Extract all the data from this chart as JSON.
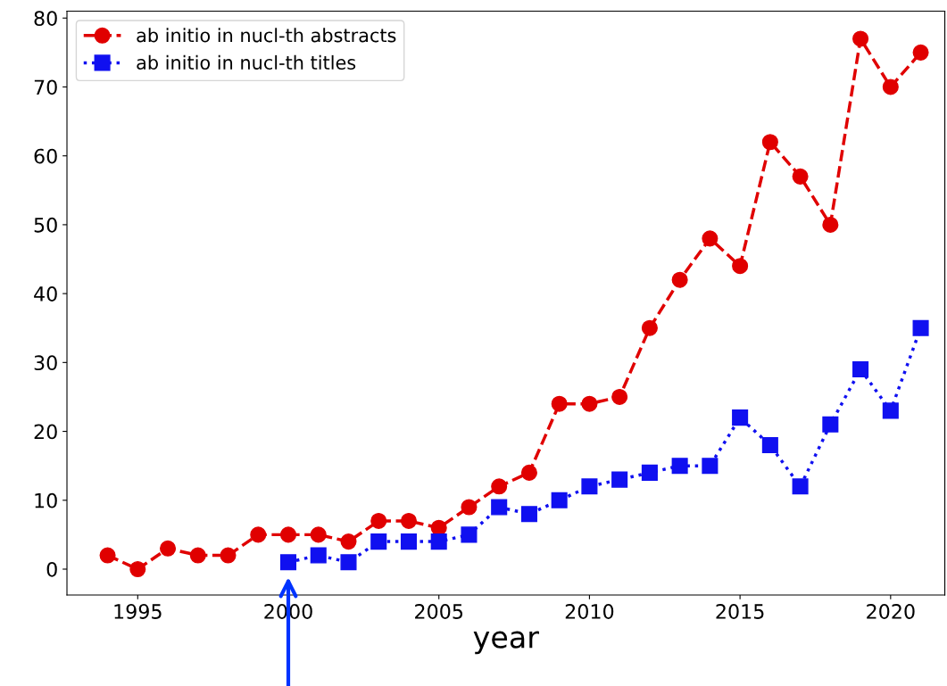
{
  "chart_data": {
    "type": "line",
    "xlabel": "year",
    "x": [
      1994,
      1995,
      1996,
      1997,
      1998,
      1999,
      2000,
      2001,
      2002,
      2003,
      2004,
      2005,
      2006,
      2007,
      2008,
      2009,
      2010,
      2011,
      2012,
      2013,
      2014,
      2015,
      2016,
      2017,
      2018,
      2019,
      2020,
      2021
    ],
    "series": [
      {
        "name": "ab initio in nucl-th abstracts",
        "color": "#e00000",
        "marker": "circle",
        "line_style": "dashed",
        "values": [
          2,
          0,
          3,
          2,
          2,
          5,
          5,
          5,
          4,
          7,
          7,
          6,
          9,
          12,
          14,
          24,
          24,
          25,
          35,
          42,
          48,
          44,
          62,
          57,
          50,
          77,
          70,
          75
        ]
      },
      {
        "name": "ab initio in nucl-th titles",
        "color": "#1010f0",
        "marker": "square",
        "line_style": "dotted",
        "x": [
          2000,
          2001,
          2002,
          2003,
          2004,
          2005,
          2006,
          2007,
          2008,
          2009,
          2010,
          2011,
          2012,
          2013,
          2014,
          2015,
          2016,
          2017,
          2018,
          2019,
          2020,
          2021
        ],
        "values": [
          1,
          2,
          1,
          4,
          4,
          4,
          5,
          9,
          8,
          10,
          12,
          13,
          14,
          15,
          15,
          22,
          18,
          12,
          21,
          29,
          23,
          35
        ]
      }
    ],
    "xlim": [
      1992.65,
      2021.8
    ],
    "ylim": [
      -3.75,
      81
    ],
    "xticks": [
      1995,
      2000,
      2005,
      2010,
      2015,
      2020
    ],
    "yticks": [
      0,
      10,
      20,
      30,
      40,
      50,
      60,
      70,
      80
    ],
    "grid": false,
    "legend": "top left"
  }
}
